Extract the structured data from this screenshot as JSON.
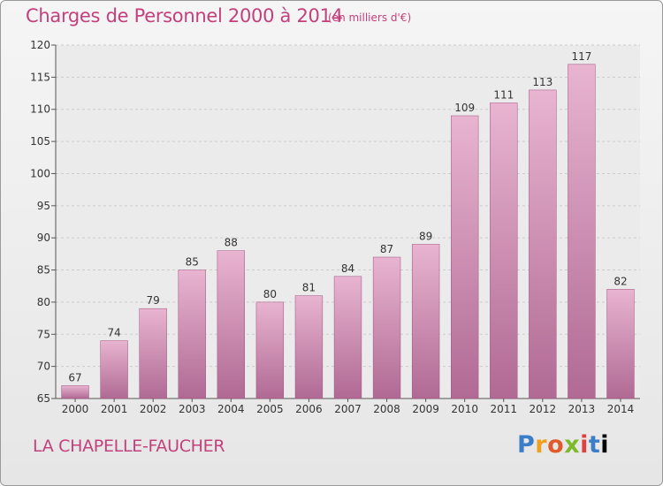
{
  "header": {
    "title": "Charges de Personnel 2000 à 2014",
    "subtitle": "(en milliers d'€)"
  },
  "footer": {
    "commune": "LA CHAPELLE-FAUCHER",
    "logo": [
      "P",
      "r",
      "o",
      "x",
      "i",
      "t",
      "i"
    ]
  },
  "colors": {
    "bar_top": "#e8b4d0",
    "bar_bottom": "#b06a94",
    "title": "#c2407c",
    "grid": "#cccccc"
  },
  "chart_data": {
    "type": "bar",
    "title": "Charges de Personnel 2000 à 2014",
    "subtitle": "(en milliers d'€)",
    "categories": [
      "2000",
      "2001",
      "2002",
      "2003",
      "2004",
      "2005",
      "2006",
      "2007",
      "2008",
      "2009",
      "2010",
      "2011",
      "2012",
      "2013",
      "2014"
    ],
    "values": [
      67,
      74,
      79,
      85,
      88,
      80,
      81,
      84,
      87,
      89,
      109,
      111,
      113,
      117,
      82
    ],
    "ylim": [
      65,
      120
    ],
    "yticks": [
      65,
      70,
      75,
      80,
      85,
      90,
      95,
      100,
      105,
      110,
      115,
      120
    ],
    "grid": "horizontal dashed",
    "xlabel": "",
    "ylabel": ""
  }
}
